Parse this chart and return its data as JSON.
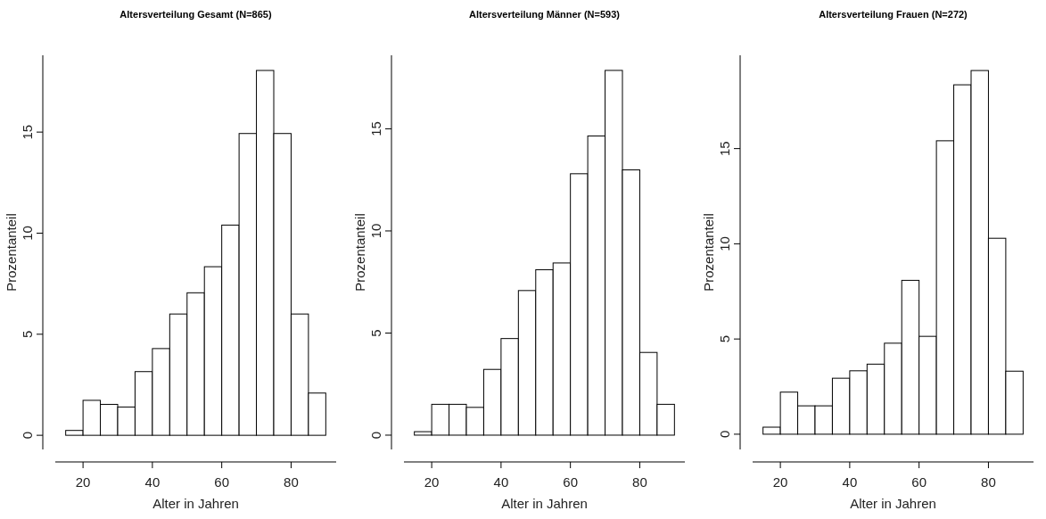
{
  "chart_data": [
    {
      "type": "histogram",
      "title": "Altersverteilung Gesamt (N=865)",
      "xlabel": "Alter in Jahren",
      "ylabel": "Prozentanteil",
      "bins": [
        15,
        20,
        25,
        30,
        35,
        40,
        45,
        50,
        55,
        60,
        65,
        70,
        75,
        80,
        85,
        90
      ],
      "values": [
        0.24,
        1.73,
        1.53,
        1.4,
        3.15,
        4.29,
        6.0,
        7.05,
        8.34,
        10.4,
        14.93,
        18.05,
        14.93,
        6.0,
        2.09
      ],
      "color": "#ffffff",
      "xlim": [
        12,
        93
      ],
      "ylim": [
        -0.7,
        18.8
      ],
      "xticks": [
        20,
        40,
        60,
        80
      ],
      "yticks": [
        0,
        5,
        10,
        15
      ]
    },
    {
      "type": "histogram",
      "title": "Altersverteilung Männer (N=593)",
      "xlabel": "Alter in Jahren",
      "ylabel": "Prozentanteil",
      "bins": [
        15,
        20,
        25,
        30,
        35,
        40,
        45,
        50,
        55,
        60,
        65,
        70,
        75,
        80,
        85,
        90
      ],
      "values": [
        0.17,
        1.51,
        1.51,
        1.36,
        3.22,
        4.73,
        7.08,
        8.1,
        8.43,
        12.8,
        14.65,
        17.86,
        12.99,
        4.05,
        1.51
      ],
      "color": "#ffffff",
      "xlim": [
        12,
        93
      ],
      "ylim": [
        -0.7,
        18.6
      ],
      "xticks": [
        20,
        40,
        60,
        80
      ],
      "yticks": [
        0,
        5,
        10,
        15
      ]
    },
    {
      "type": "histogram",
      "title": "Altersverteilung Frauen (N=272)",
      "xlabel": "Alter in Jahren",
      "ylabel": "Prozentanteil",
      "bins": [
        15,
        20,
        25,
        30,
        35,
        40,
        45,
        50,
        55,
        60,
        65,
        70,
        75,
        80,
        85,
        90
      ],
      "values": [
        0.37,
        2.21,
        1.49,
        1.49,
        2.94,
        3.33,
        3.68,
        4.78,
        8.08,
        5.14,
        15.41,
        18.35,
        19.1,
        10.29,
        3.31
      ],
      "color": "#ffffff",
      "xlim": [
        12,
        93
      ],
      "ylim": [
        -0.8,
        19.9
      ],
      "xticks": [
        20,
        40,
        60,
        80
      ],
      "yticks": [
        0,
        5,
        10,
        15
      ]
    }
  ]
}
